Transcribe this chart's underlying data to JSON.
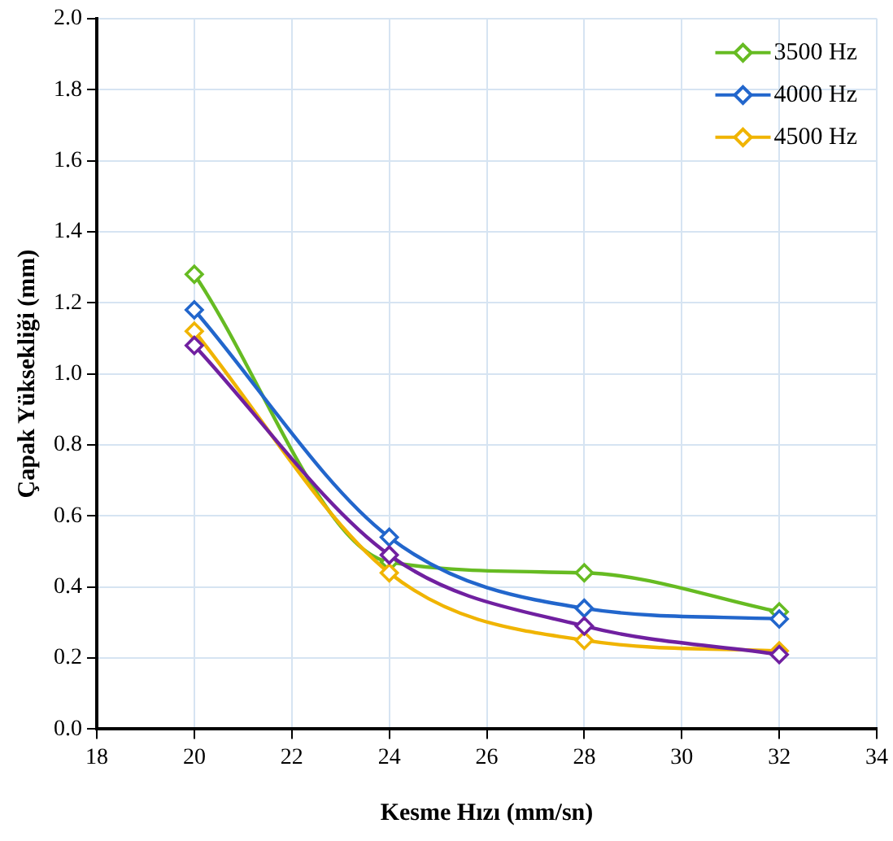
{
  "chart_data": {
    "type": "line",
    "xlabel": "Kesme Hızı (mm/sn)",
    "ylabel": "Çapak Yüksekliği (mm)",
    "x": [
      20,
      24,
      28,
      32
    ],
    "series": [
      {
        "name": "3500 Hz",
        "color": "#66bb22",
        "values": [
          1.28,
          0.47,
          0.44,
          0.33
        ]
      },
      {
        "name": "4000 Hz",
        "color": "#2266cc",
        "values": [
          1.18,
          0.54,
          0.34,
          0.31
        ]
      },
      {
        "name": "4500 Hz",
        "color": "#f0b400",
        "values": [
          1.12,
          0.44,
          0.25,
          0.22
        ]
      },
      {
        "color": "#7020a0",
        "values": [
          1.08,
          0.49,
          0.29,
          0.21
        ]
      }
    ],
    "xlim": [
      18,
      34
    ],
    "xticks": [
      18,
      20,
      22,
      24,
      26,
      28,
      30,
      32,
      34
    ],
    "ylim": [
      0,
      2
    ],
    "yticks": [
      {
        "value": 0,
        "label": "0.0"
      },
      {
        "value": 0.2,
        "label": "0.2"
      },
      {
        "value": 0.4,
        "label": "0.4"
      },
      {
        "value": 0.6,
        "label": "0.6"
      },
      {
        "value": 0.8,
        "label": "0.8"
      },
      {
        "value": 1,
        "label": "1.0"
      },
      {
        "value": 1.2,
        "label": "1.2"
      },
      {
        "value": 1.4,
        "label": "1.4"
      },
      {
        "value": 1.6,
        "label": "1.6"
      },
      {
        "value": 1.8,
        "label": "1.8"
      },
      {
        "value": 2,
        "label": "2.0"
      }
    ],
    "grid": true,
    "legend": "top right",
    "marker": "diamond",
    "line_style": "solid"
  }
}
